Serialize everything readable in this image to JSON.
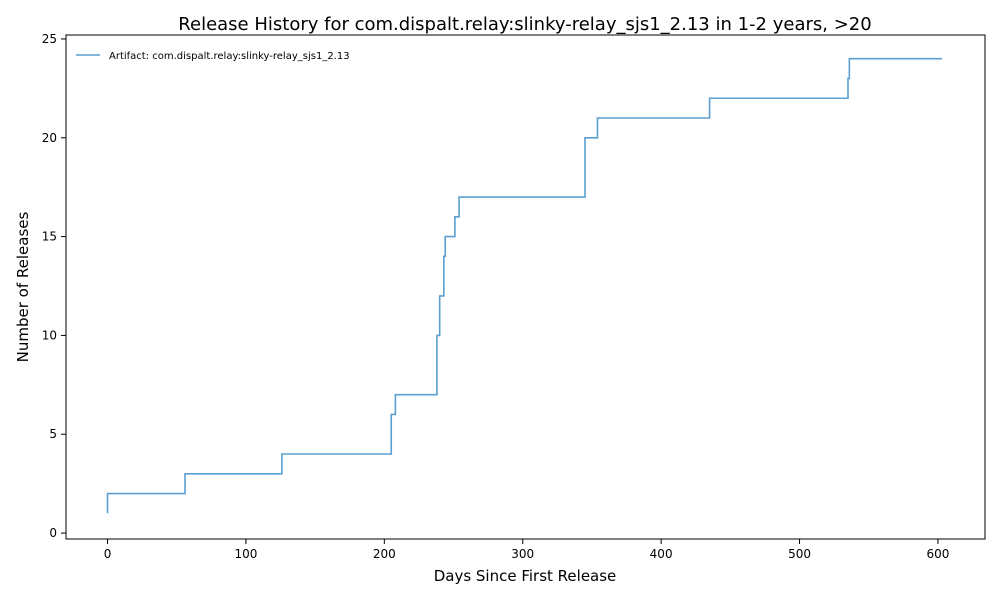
{
  "chart_data": {
    "type": "line",
    "step": "post",
    "title": "Release History for com.dispalt.relay:slinky-relay_sjs1_2.13 in 1-2 years, >20",
    "xlabel": "Days Since First Release",
    "ylabel": "Number of Releases",
    "xlim": [
      -30,
      634
    ],
    "ylim": [
      -0.3,
      25.2
    ],
    "xticks": [
      0,
      100,
      200,
      300,
      400,
      500,
      600
    ],
    "yticks": [
      0,
      5,
      10,
      15,
      20,
      25
    ],
    "grid": false,
    "legend_position": "top-left",
    "series": [
      {
        "name": "Artifact: com.dispalt.relay:slinky-relay_sjs1_2.13",
        "color": "#5b9fd0",
        "points": [
          [
            0,
            1
          ],
          [
            0,
            2
          ],
          [
            56,
            3
          ],
          [
            126,
            4
          ],
          [
            205,
            6
          ],
          [
            208,
            7
          ],
          [
            238,
            8
          ],
          [
            238,
            10
          ],
          [
            240,
            11
          ],
          [
            240,
            12
          ],
          [
            243,
            14
          ],
          [
            244,
            15
          ],
          [
            251,
            16
          ],
          [
            254,
            17
          ],
          [
            345,
            20
          ],
          [
            354,
            21
          ],
          [
            435,
            22
          ],
          [
            535,
            23
          ],
          [
            536,
            24
          ],
          [
            603,
            24
          ]
        ]
      }
    ]
  }
}
